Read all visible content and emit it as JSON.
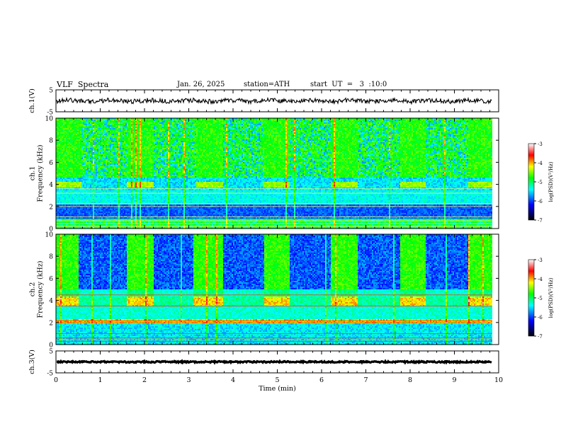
{
  "header": {
    "title": "VLF  Spectra",
    "date": "Jan. 26, 2025",
    "station": "station=ATH",
    "start": "start  UT  =   3  :10:0"
  },
  "chart_data": [
    {
      "type": "line",
      "panel": "ch1-waveform",
      "ylabel": "ch.1(V)",
      "ylim": [
        -5,
        5
      ],
      "yticks": [
        "5",
        "-5"
      ],
      "xlim": [
        0,
        10
      ],
      "trace_level": 0,
      "trace_color": "#000000"
    },
    {
      "type": "heatmap",
      "panel": "ch1-spectrogram",
      "ylabel": "ch.1\nFrequency (kHz)",
      "ylim": [
        0,
        10
      ],
      "yticks": [
        "0",
        "2",
        "4",
        "6",
        "8",
        "10"
      ],
      "xlim": [
        0,
        10
      ],
      "data_end_min": 9.85,
      "transmitter_bursts_min": [
        [
          0,
          0.55
        ],
        [
          1.6,
          2.2
        ],
        [
          3.15,
          3.75
        ],
        [
          4.65,
          5.25
        ],
        [
          6.2,
          6.8
        ],
        [
          7.75,
          8.35
        ],
        [
          9.3,
          9.85
        ]
      ],
      "colorbar": {
        "label": "log(PSD)(V²/Hz)",
        "ticks": [
          "-3",
          "-4",
          "-5",
          "-6",
          "-7"
        ],
        "range": [
          -7,
          -3
        ]
      }
    },
    {
      "type": "heatmap",
      "panel": "ch2-spectrogram",
      "ylabel": "ch.2\nFrequency (kHz)",
      "ylim": [
        0,
        10
      ],
      "yticks": [
        "0",
        "2",
        "4",
        "6",
        "8",
        "10"
      ],
      "xlim": [
        0,
        10
      ],
      "data_end_min": 9.85,
      "quiet_blocks_min": [
        [
          0.5,
          1.6
        ],
        [
          2.2,
          3.1
        ],
        [
          3.75,
          4.7
        ],
        [
          5.25,
          6.2
        ],
        [
          6.8,
          7.75
        ],
        [
          8.35,
          9.3
        ]
      ],
      "colorbar": {
        "label": "log(PSD)(V²/Hz)",
        "ticks": [
          "-3",
          "-4",
          "-5",
          "-6",
          "-7"
        ],
        "range": [
          -7,
          -3
        ]
      }
    },
    {
      "type": "line",
      "panel": "ch3-waveform",
      "ylabel": "ch.3(V)",
      "ylim": [
        -5,
        5
      ],
      "yticks": [
        "5",
        "-5"
      ],
      "xlim": [
        0,
        10
      ],
      "trace_level": 0,
      "trace_color": "#000000"
    }
  ],
  "x_axis": {
    "label": "Time (min)",
    "ticks": [
      "0",
      "1",
      "2",
      "3",
      "4",
      "5",
      "6",
      "7",
      "8",
      "9",
      "10"
    ]
  },
  "colors": {
    "scale": [
      "#000000",
      "#0000ff",
      "#00ffff",
      "#00ff00",
      "#ffff00",
      "#ff0000",
      "#ffffff"
    ]
  }
}
